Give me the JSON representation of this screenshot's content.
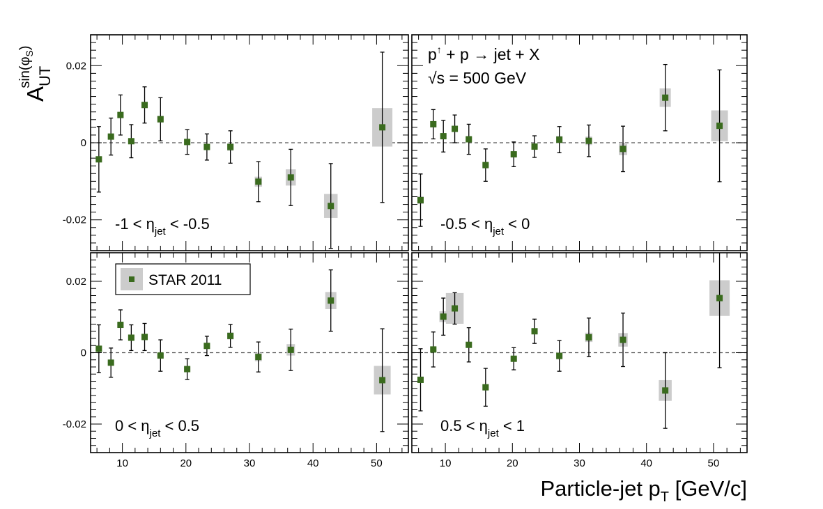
{
  "chart_data": {
    "type": "scatter",
    "layout": "2x2 panels, shared axes",
    "reaction": {
      "p": "p",
      "arrow": "↑",
      "rest": " + p → jet + X"
    },
    "energy": {
      "sqrt": "√",
      "s": "s",
      "rest": " = 500 GeV"
    },
    "ylabel": {
      "main": "A",
      "sub": "UT",
      "sup_pre": "sin(φ",
      "sup_sub": "S",
      "sup_post": ")"
    },
    "xlabel": {
      "main": "Particle-jet p",
      "sub": "T",
      "rest": " [GeV/c]"
    },
    "xlim": [
      5,
      55
    ],
    "ylim": [
      -0.028,
      0.028
    ],
    "x_ticks": [
      10,
      20,
      30,
      40,
      50
    ],
    "x_tick_labels": [
      "10",
      "20",
      "30",
      "40",
      "50"
    ],
    "y_ticks": [
      -0.02,
      0,
      0.02
    ],
    "y_tick_labels": [
      "-0.02",
      "0",
      "0.02"
    ],
    "reference_line": 0,
    "grid": false,
    "legend": {
      "label": "STAR 2011",
      "position": "top-left of lower-left panel"
    },
    "marker_color": "#3a6b1e",
    "band_color": "#cccccc",
    "panels": [
      {
        "eta_range": {
          "pre": "-1 < η",
          "sub": "jet",
          "post": " < -0.5"
        },
        "points": [
          {
            "x": 6.3,
            "y": -0.0043,
            "err": 0.0085,
            "sys": 0.0008
          },
          {
            "x": 8.2,
            "y": 0.0016,
            "err": 0.0048,
            "sys": 0.0006
          },
          {
            "x": 9.7,
            "y": 0.0072,
            "err": 0.0052,
            "sys": 0.0008
          },
          {
            "x": 11.4,
            "y": 0.0004,
            "err": 0.0043,
            "sys": 0.0006
          },
          {
            "x": 13.5,
            "y": 0.0098,
            "err": 0.0047,
            "sys": 0.0006
          },
          {
            "x": 16.0,
            "y": 0.0061,
            "err": 0.0056,
            "sys": 0.0009
          },
          {
            "x": 20.2,
            "y": 0.0002,
            "err": 0.0032,
            "sys": 0.0006
          },
          {
            "x": 23.3,
            "y": -0.0011,
            "err": 0.0034,
            "sys": 0.0006
          },
          {
            "x": 27.0,
            "y": -0.0011,
            "err": 0.0042,
            "sys": 0.001
          },
          {
            "x": 31.4,
            "y": -0.0101,
            "err": 0.0052,
            "sys": 0.0013
          },
          {
            "x": 36.5,
            "y": -0.009,
            "err": 0.0073,
            "sys": 0.0021
          },
          {
            "x": 42.8,
            "y": -0.0164,
            "err": 0.011,
            "sys": 0.0031
          },
          {
            "x": 50.9,
            "y": 0.004,
            "err": 0.0195,
            "sys": 0.005
          }
        ]
      },
      {
        "eta_range": {
          "pre": "-0.5 < η",
          "sub": "jet",
          "post": " < 0"
        },
        "points": [
          {
            "x": 6.3,
            "y": -0.0149,
            "err": 0.0068,
            "sys": 0.001
          },
          {
            "x": 8.2,
            "y": 0.0048,
            "err": 0.0038,
            "sys": 0.0008
          },
          {
            "x": 9.7,
            "y": 0.0017,
            "err": 0.0041,
            "sys": 0.0006
          },
          {
            "x": 11.4,
            "y": 0.0036,
            "err": 0.0036,
            "sys": 0.0008
          },
          {
            "x": 13.5,
            "y": 0.0009,
            "err": 0.0039,
            "sys": 0.0006
          },
          {
            "x": 16.0,
            "y": -0.0058,
            "err": 0.0042,
            "sys": 0.0006
          },
          {
            "x": 20.2,
            "y": -0.003,
            "err": 0.0032,
            "sys": 0.0006
          },
          {
            "x": 23.3,
            "y": -0.001,
            "err": 0.0028,
            "sys": 0.0006
          },
          {
            "x": 27.0,
            "y": 0.0008,
            "err": 0.0034,
            "sys": 0.001
          },
          {
            "x": 31.4,
            "y": 0.0005,
            "err": 0.0041,
            "sys": 0.0011
          },
          {
            "x": 36.5,
            "y": -0.0016,
            "err": 0.0059,
            "sys": 0.0016
          },
          {
            "x": 42.8,
            "y": 0.0117,
            "err": 0.0086,
            "sys": 0.0024
          },
          {
            "x": 50.9,
            "y": 0.0044,
            "err": 0.0145,
            "sys": 0.004
          }
        ]
      },
      {
        "eta_range": {
          "pre": "0 < η",
          "sub": "jet",
          "post": " < 0.5"
        },
        "points": [
          {
            "x": 6.3,
            "y": 0.0011,
            "err": 0.0067,
            "sys": 0.0008
          },
          {
            "x": 8.2,
            "y": -0.0028,
            "err": 0.0041,
            "sys": 0.0006
          },
          {
            "x": 9.7,
            "y": 0.0078,
            "err": 0.0042,
            "sys": 0.0006
          },
          {
            "x": 11.4,
            "y": 0.0042,
            "err": 0.0036,
            "sys": 0.0006
          },
          {
            "x": 13.5,
            "y": 0.0044,
            "err": 0.0038,
            "sys": 0.0008
          },
          {
            "x": 16.0,
            "y": -0.0008,
            "err": 0.0044,
            "sys": 0.0006
          },
          {
            "x": 20.2,
            "y": -0.0046,
            "err": 0.0029,
            "sys": 0.0006
          },
          {
            "x": 23.3,
            "y": 0.0019,
            "err": 0.0027,
            "sys": 0.0007
          },
          {
            "x": 27.0,
            "y": 0.0047,
            "err": 0.0032,
            "sys": 0.001
          },
          {
            "x": 31.4,
            "y": -0.0012,
            "err": 0.0042,
            "sys": 0.0012
          },
          {
            "x": 36.5,
            "y": 0.0008,
            "err": 0.0058,
            "sys": 0.0016
          },
          {
            "x": 42.8,
            "y": 0.0146,
            "err": 0.0086,
            "sys": 0.0024
          },
          {
            "x": 50.9,
            "y": -0.0077,
            "err": 0.0144,
            "sys": 0.004
          }
        ]
      },
      {
        "eta_range": {
          "pre": "0.5 < η",
          "sub": "jet",
          "post": " < 1"
        },
        "points": [
          {
            "x": 6.3,
            "y": -0.0076,
            "err": 0.0087,
            "sys": 0.0009
          },
          {
            "x": 8.2,
            "y": 0.0009,
            "err": 0.0049,
            "sys": 0.0006
          },
          {
            "x": 9.7,
            "y": 0.0101,
            "err": 0.0052,
            "sys": 0.0015
          },
          {
            "x": 11.4,
            "y": 0.0124,
            "err": 0.0044,
            "sys": 0.0043
          },
          {
            "x": 13.5,
            "y": 0.0022,
            "err": 0.0048,
            "sys": 0.0006
          },
          {
            "x": 16.0,
            "y": -0.0097,
            "err": 0.0053,
            "sys": 0.0008
          },
          {
            "x": 20.2,
            "y": -0.0017,
            "err": 0.0031,
            "sys": 0.0006
          },
          {
            "x": 23.3,
            "y": 0.006,
            "err": 0.0034,
            "sys": 0.0007
          },
          {
            "x": 27.0,
            "y": -0.0009,
            "err": 0.0043,
            "sys": 0.001
          },
          {
            "x": 31.4,
            "y": 0.0043,
            "err": 0.0054,
            "sys": 0.0013
          },
          {
            "x": 36.5,
            "y": 0.0036,
            "err": 0.0075,
            "sys": 0.0019
          },
          {
            "x": 42.8,
            "y": -0.0106,
            "err": 0.0106,
            "sys": 0.0029
          },
          {
            "x": 50.9,
            "y": 0.0153,
            "err": 0.0195,
            "sys": 0.005
          }
        ]
      }
    ]
  }
}
